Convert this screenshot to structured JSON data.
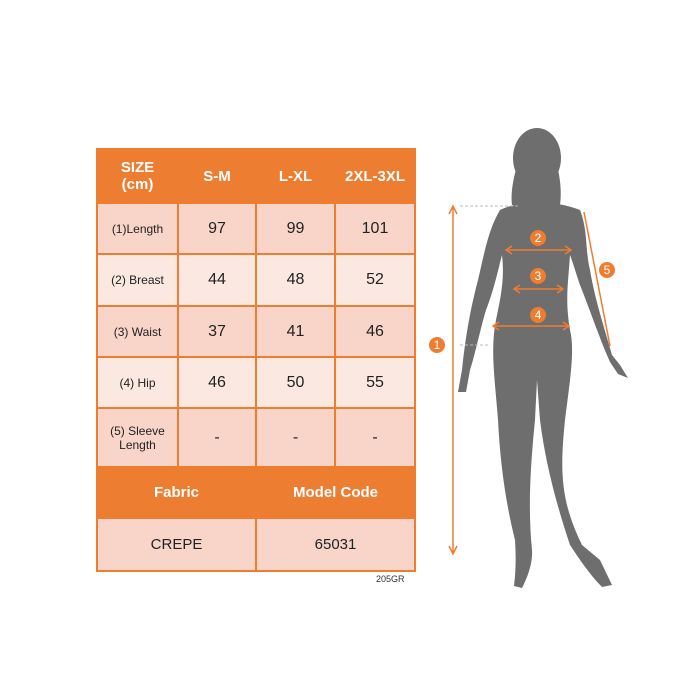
{
  "table": {
    "header": [
      "SIZE\n(cm)",
      "S-M",
      "L-XL",
      "2XL-3XL"
    ],
    "header_line1": "SIZE",
    "header_line2": "(cm)",
    "rows": [
      {
        "label": "(1)Length",
        "values": [
          "97",
          "99",
          "101"
        ]
      },
      {
        "label": "(2) Breast",
        "values": [
          "44",
          "48",
          "52"
        ]
      },
      {
        "label": "(3) Waist",
        "values": [
          "37",
          "41",
          "46"
        ]
      },
      {
        "label": "(4) Hip",
        "values": [
          "46",
          "50",
          "55"
        ]
      },
      {
        "label": "(5) Sleeve Length",
        "values": [
          "-",
          "-",
          "-"
        ]
      }
    ],
    "fabric_label": "Fabric",
    "model_code_label": "Model Code",
    "fabric": "CREPE",
    "model_code": "65031"
  },
  "product_code": "205GR",
  "markers": [
    "1",
    "2",
    "3",
    "4",
    "5"
  ],
  "colors": {
    "accent": "#ed7d31",
    "row_dark": "#f8d5c8",
    "row_light": "#fbe8e0",
    "silhouette": "#6e6e6e"
  }
}
